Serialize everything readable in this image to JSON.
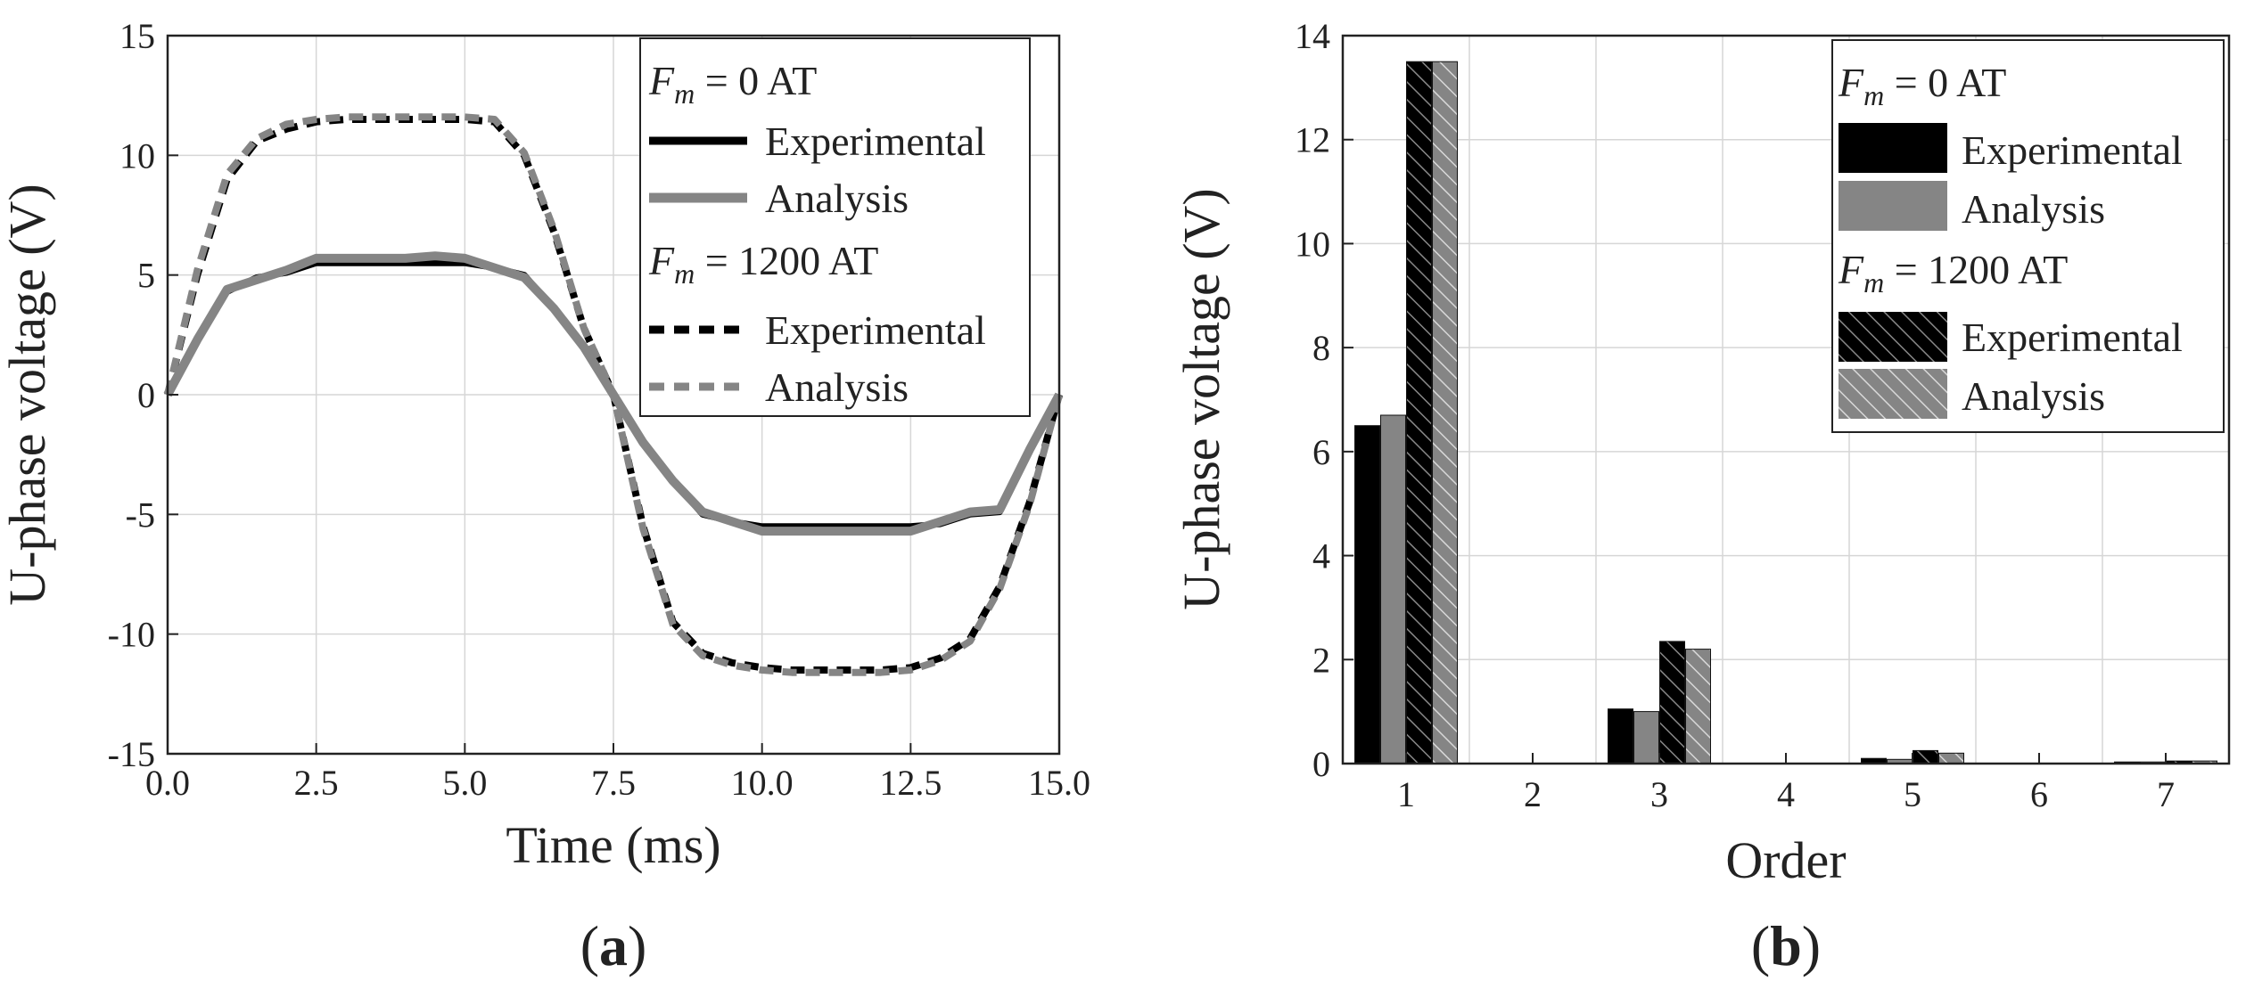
{
  "chart_data": [
    {
      "panel": "(a)",
      "panel_letter": "a",
      "type": "line",
      "title": "",
      "xlabel": "Time (ms)",
      "ylabel": "U-phase voltage (V)",
      "xlim": [
        0,
        15
      ],
      "ylim": [
        -15,
        15
      ],
      "xticks": [
        "0.0",
        "2.5",
        "5.0",
        "7.5",
        "10.0",
        "12.5",
        "15.0"
      ],
      "yticks": [
        "15",
        "10",
        "5",
        "0",
        "-5",
        "-10",
        "-15"
      ],
      "grid": true,
      "legend_position": "top-right",
      "legend": {
        "group1_prefix": "F",
        "group1_sub": "m",
        "group1_suffix": " = 0 AT",
        "group2_prefix": "F",
        "group2_sub": "m",
        "group2_suffix": " = 1200 AT",
        "entries": [
          "Experimental",
          "Analysis",
          "Experimental",
          "Analysis"
        ]
      },
      "x": [
        0,
        0.5,
        1.0,
        1.5,
        2.0,
        2.5,
        3.0,
        3.5,
        4.0,
        4.5,
        5.0,
        5.5,
        6.0,
        6.5,
        7.0,
        7.5,
        8.0,
        8.5,
        9.0,
        9.5,
        10.0,
        10.5,
        11.0,
        11.5,
        12.0,
        12.5,
        13.0,
        13.5,
        14.0,
        14.5,
        15.0
      ],
      "series": [
        {
          "name": "Experimental (Fm = 0 AT)",
          "color": "#000000",
          "style": "solid",
          "values": [
            0,
            2.4,
            4.3,
            4.9,
            5.1,
            5.5,
            5.5,
            5.5,
            5.5,
            5.5,
            5.5,
            5.3,
            5.0,
            3.6,
            2.0,
            0,
            -2.0,
            -3.6,
            -5.0,
            -5.3,
            -5.5,
            -5.5,
            -5.5,
            -5.5,
            -5.5,
            -5.5,
            -5.4,
            -5.0,
            -4.9,
            -2.4,
            0
          ]
        },
        {
          "name": "Analysis (Fm = 0 AT)",
          "color": "#858585",
          "style": "solid",
          "values": [
            0,
            2.3,
            4.4,
            4.8,
            5.2,
            5.7,
            5.7,
            5.7,
            5.7,
            5.8,
            5.7,
            5.3,
            4.9,
            3.6,
            2.0,
            0,
            -2.0,
            -3.6,
            -4.9,
            -5.3,
            -5.7,
            -5.7,
            -5.7,
            -5.7,
            -5.7,
            -5.7,
            -5.3,
            -4.9,
            -4.8,
            -2.3,
            0
          ]
        },
        {
          "name": "Experimental (Fm = 1200 AT)",
          "color": "#000000",
          "style": "dashed",
          "values": [
            0,
            5.0,
            9.0,
            10.6,
            11.1,
            11.4,
            11.5,
            11.5,
            11.5,
            11.5,
            11.5,
            11.4,
            10.0,
            6.8,
            2.8,
            0,
            -5.5,
            -9.5,
            -10.8,
            -11.2,
            -11.4,
            -11.5,
            -11.5,
            -11.5,
            -11.5,
            -11.4,
            -11.0,
            -10.2,
            -8.0,
            -4.5,
            0
          ]
        },
        {
          "name": "Analysis (Fm = 1200 AT)",
          "color": "#858585",
          "style": "dashed",
          "values": [
            0,
            5.2,
            9.2,
            10.7,
            11.3,
            11.5,
            11.6,
            11.6,
            11.6,
            11.6,
            11.6,
            11.5,
            10.1,
            6.9,
            2.8,
            0,
            -5.6,
            -9.6,
            -10.9,
            -11.3,
            -11.5,
            -11.6,
            -11.6,
            -11.6,
            -11.6,
            -11.5,
            -11.1,
            -10.3,
            -8.1,
            -4.6,
            0
          ]
        }
      ]
    },
    {
      "panel": "(b)",
      "panel_letter": "b",
      "type": "bar",
      "title": "",
      "xlabel": "Order",
      "ylabel": "U-phase voltage (V)",
      "ylim": [
        0,
        14
      ],
      "yticks": [
        "14",
        "12",
        "10",
        "8",
        "6",
        "4",
        "2",
        "0"
      ],
      "categories": [
        "1",
        "2",
        "3",
        "4",
        "5",
        "6",
        "7"
      ],
      "grid": true,
      "legend_position": "top-right",
      "legend": {
        "group1_prefix": "F",
        "group1_sub": "m",
        "group1_suffix": " = 0 AT",
        "group2_prefix": "F",
        "group2_sub": "m",
        "group2_suffix": " = 1200 AT",
        "entries": [
          "Experimental",
          "Analysis",
          "Experimental",
          "Analysis"
        ]
      },
      "series": [
        {
          "name": "Experimental (Fm = 0 AT)",
          "color": "#000000",
          "hatched": false,
          "values": [
            6.5,
            0,
            1.05,
            0,
            0.1,
            0,
            0.03
          ]
        },
        {
          "name": "Analysis (Fm = 0 AT)",
          "color": "#858585",
          "hatched": false,
          "values": [
            6.7,
            0,
            1.0,
            0,
            0.08,
            0,
            0.03
          ]
        },
        {
          "name": "Experimental (Fm = 1200 AT)",
          "color": "#000000",
          "hatched": true,
          "values": [
            13.5,
            0,
            2.35,
            0,
            0.25,
            0,
            0.05
          ]
        },
        {
          "name": "Analysis (Fm = 1200 AT)",
          "color": "#858585",
          "hatched": true,
          "values": [
            13.5,
            0,
            2.2,
            0,
            0.2,
            0,
            0.05
          ]
        }
      ]
    }
  ]
}
